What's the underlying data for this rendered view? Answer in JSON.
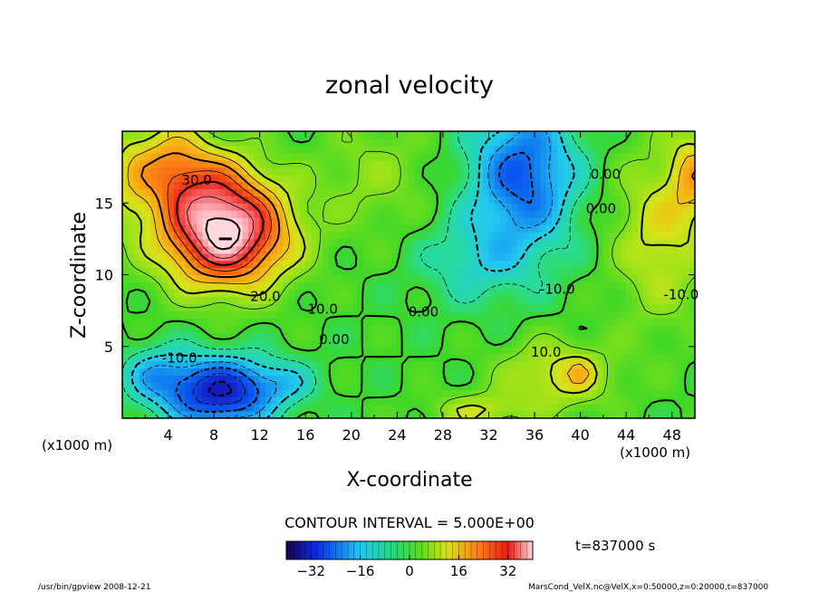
{
  "chart_data": {
    "type": "contour",
    "title": "zonal velocity",
    "xlabel": "X-coordinate",
    "ylabel": "Z-coordinate",
    "x_unit_left": "(x1000 m)",
    "x_unit_right": "(x1000 m)",
    "xlim": [
      0,
      50
    ],
    "ylim": [
      0,
      20
    ],
    "x_ticks": [
      4,
      8,
      12,
      16,
      20,
      24,
      28,
      32,
      36,
      40,
      44,
      48
    ],
    "y_ticks": [
      5,
      10,
      15
    ],
    "contour_interval_text": "CONTOUR INTERVAL = 5.000E+00",
    "time_text": "t=837000 s",
    "colorbar": {
      "min": -40,
      "max": 40,
      "ticks": [
        -32,
        -16,
        0,
        16,
        32
      ]
    },
    "contour_labels": [
      {
        "text": "30.0",
        "x": 6.5,
        "z": 16.6
      },
      {
        "text": "20.0",
        "x": 12.5,
        "z": 8.5
      },
      {
        "text": "10.0",
        "x": 17.5,
        "z": 7.6
      },
      {
        "text": "0.00",
        "x": 18.5,
        "z": 5.5
      },
      {
        "text": "-10.0",
        "x": 5.0,
        "z": 4.2
      },
      {
        "text": "0.00",
        "x": 26.3,
        "z": 7.4
      },
      {
        "text": "-10.0",
        "x": 38.0,
        "z": 9.0
      },
      {
        "text": "10.0",
        "x": 37.0,
        "z": 4.6
      },
      {
        "text": "0.00",
        "x": 42.2,
        "z": 17.0
      },
      {
        "text": "0.00",
        "x": 41.8,
        "z": 14.6
      },
      {
        "text": "-10.0",
        "x": 48.8,
        "z": 8.6
      }
    ],
    "features": [
      {
        "kind": "jet maximum",
        "x": 9,
        "z": 12.5,
        "value": 40
      },
      {
        "kind": "jet minimum",
        "x": 8,
        "z": 2.0,
        "value": -28
      },
      {
        "kind": "upper minimum",
        "x": 35,
        "z": 17,
        "value": -20
      }
    ]
  },
  "footer": {
    "left": "/usr/bin/gpview   2008-12-21",
    "right": "MarsCond_VelX.nc@VelX,x=0:50000,z=0:20000,t=837000"
  }
}
